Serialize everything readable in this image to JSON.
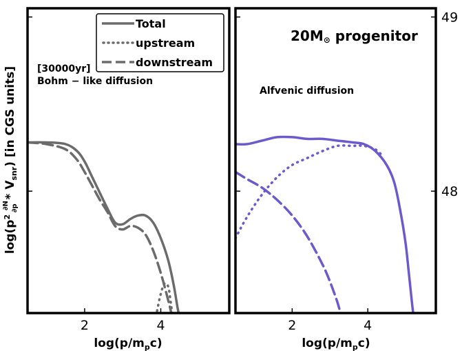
{
  "chart_data": [
    {
      "type": "line",
      "panel": "left",
      "xlabel_base": "log(p/m",
      "xlabel_sub": "p",
      "xlabel_tail": "c)",
      "ylabel": "log(p² ∂N/∂p * V_snr) [in CGS units]",
      "xlim": [
        0.5,
        5.8
      ],
      "xticks": [
        2,
        4
      ],
      "ylim": [
        47.3,
        49.05
      ],
      "annotations": [
        "[30000yr]",
        "Bohm − like diffusion"
      ],
      "legend": {
        "position": "top",
        "entries": [
          {
            "label": "Total",
            "style": "solid"
          },
          {
            "label": "upstream",
            "style": "dotted"
          },
          {
            "label": "downstream",
            "style": "dashed"
          }
        ]
      },
      "color": "#6b6b6b",
      "series": [
        {
          "name": "Total",
          "style": "solid",
          "x": [
            0.5,
            1.0,
            1.5,
            1.8,
            2.0,
            2.2,
            2.4,
            2.6,
            2.8,
            3.0,
            3.2,
            3.4,
            3.6,
            3.8,
            4.0,
            4.2,
            4.35,
            4.45,
            4.52
          ],
          "y": [
            48.28,
            48.28,
            48.27,
            48.23,
            48.17,
            48.08,
            47.99,
            47.9,
            47.82,
            47.81,
            47.84,
            47.86,
            47.86,
            47.82,
            47.73,
            47.6,
            47.45,
            47.32,
            47.26
          ]
        },
        {
          "name": "upstream",
          "style": "dotted",
          "x": [
            3.85,
            3.9,
            4.0,
            4.1,
            4.2,
            4.25,
            4.32
          ],
          "y": [
            47.25,
            47.31,
            47.41,
            47.47,
            47.45,
            47.38,
            47.27
          ]
        },
        {
          "name": "downstream",
          "style": "dashed",
          "x": [
            0.5,
            1.0,
            1.5,
            1.8,
            2.0,
            2.2,
            2.4,
            2.6,
            2.8,
            3.0,
            3.2,
            3.4,
            3.6,
            3.8,
            4.0,
            4.2,
            4.3,
            4.35
          ],
          "y": [
            48.28,
            48.27,
            48.24,
            48.18,
            48.11,
            48.03,
            47.95,
            47.88,
            47.8,
            47.78,
            47.8,
            47.79,
            47.75,
            47.66,
            47.53,
            47.37,
            47.28,
            47.26
          ]
        }
      ]
    },
    {
      "type": "line",
      "panel": "right",
      "title": "20M",
      "title_symbol": "⊙",
      "title_tail": " progenitor",
      "xlabel_base": "log(p/m",
      "xlabel_sub": "p",
      "xlabel_tail": "c)",
      "xlim": [
        0.5,
        5.8
      ],
      "xticks": [
        2,
        4
      ],
      "ylim": [
        47.3,
        49.05
      ],
      "yticks": [
        48,
        49
      ],
      "annotations": [
        "Alfvenic diffusion"
      ],
      "color": "#6a5acd",
      "series": [
        {
          "style": "solid",
          "x": [
            0.5,
            0.8,
            1.2,
            1.6,
            2.0,
            2.4,
            2.8,
            3.2,
            3.6,
            3.9,
            4.2,
            4.5,
            4.7,
            4.85,
            5.0,
            5.1,
            5.2,
            5.25
          ],
          "y": [
            48.27,
            48.27,
            48.29,
            48.31,
            48.31,
            48.3,
            48.3,
            48.29,
            48.28,
            48.27,
            48.23,
            48.15,
            48.05,
            47.9,
            47.7,
            47.5,
            47.3,
            47.25
          ]
        },
        {
          "style": "dotted",
          "x": [
            0.5,
            0.8,
            1.2,
            1.6,
            2.0,
            2.4,
            2.8,
            3.2,
            3.6,
            3.9,
            4.2,
            4.4
          ],
          "y": [
            47.73,
            47.85,
            47.98,
            48.08,
            48.15,
            48.19,
            48.23,
            48.26,
            48.26,
            48.26,
            48.24,
            48.2
          ]
        },
        {
          "style": "dashed",
          "x": [
            0.5,
            0.8,
            1.2,
            1.6,
            2.0,
            2.4,
            2.8,
            3.0,
            3.2,
            3.3
          ],
          "y": [
            48.11,
            48.07,
            48.02,
            47.95,
            47.86,
            47.74,
            47.58,
            47.48,
            47.36,
            47.28
          ]
        }
      ]
    }
  ]
}
